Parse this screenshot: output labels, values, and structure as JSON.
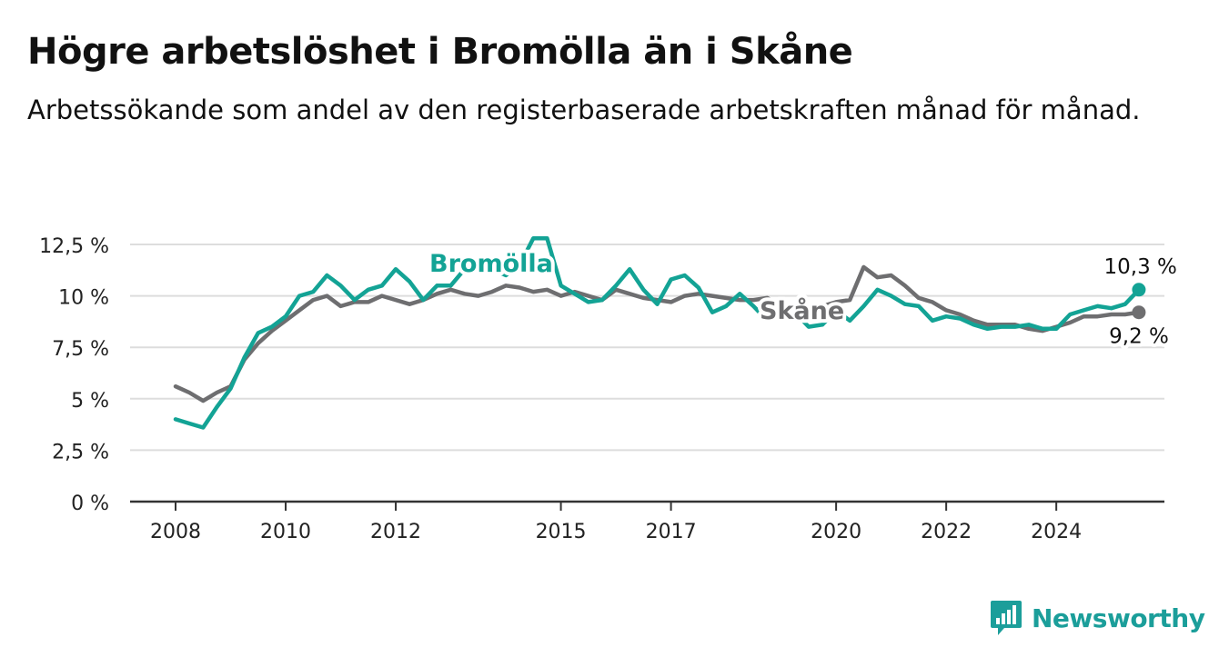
{
  "title": "Högre arbetslöshet i Bromölla än i Skåne",
  "subtitle": "Arbetssökande som andel av den registerbaserade arbetskraften månad för månad.",
  "brand": {
    "name": "Newsworthy",
    "icon": "bar-chart-logo-icon"
  },
  "colors": {
    "bromolla": "#13a395",
    "skane": "#6e6e70",
    "grid": "#dddddd",
    "axis": "#333333"
  },
  "chart_data": {
    "type": "line",
    "title": "Högre arbetslöshet i Bromölla än i Skåne",
    "ylim": [
      0,
      12.5
    ],
    "yticks": [
      0,
      2.5,
      5,
      7.5,
      10,
      12.5
    ],
    "ytick_labels": [
      "0 %",
      "2,5 %",
      "5 %",
      "7,5 %",
      "10 %",
      "12,5 %"
    ],
    "xlim": [
      "2008-01",
      "2025-09"
    ],
    "xticks": [
      "2008-01",
      "2010-01",
      "2012-01",
      "2015-01",
      "2017-01",
      "2020-01",
      "2022-01",
      "2024-01"
    ],
    "xtick_labels": [
      "2008",
      "2010",
      "2012",
      "2015",
      "2017",
      "2020",
      "2022",
      "2024"
    ],
    "grid": true,
    "legend": "inline labels",
    "end_labels": {
      "Bromölla": "10,3 %",
      "Skåne": "9,2 %"
    },
    "series": [
      {
        "name": "Bromölla",
        "points": [
          [
            "2008-01",
            4.0
          ],
          [
            "2008-04",
            3.8
          ],
          [
            "2008-07",
            3.6
          ],
          [
            "2008-10",
            4.6
          ],
          [
            "2009-01",
            5.5
          ],
          [
            "2009-04",
            7.0
          ],
          [
            "2009-07",
            8.2
          ],
          [
            "2009-10",
            8.5
          ],
          [
            "2010-01",
            9.0
          ],
          [
            "2010-04",
            10.0
          ],
          [
            "2010-07",
            10.2
          ],
          [
            "2010-10",
            11.0
          ],
          [
            "2011-01",
            10.5
          ],
          [
            "2011-04",
            9.8
          ],
          [
            "2011-07",
            10.3
          ],
          [
            "2011-10",
            10.5
          ],
          [
            "2012-01",
            11.3
          ],
          [
            "2012-04",
            10.7
          ],
          [
            "2012-07",
            9.8
          ],
          [
            "2012-10",
            10.5
          ],
          [
            "2013-01",
            10.5
          ],
          [
            "2013-04",
            11.3
          ],
          [
            "2013-07",
            11.7
          ],
          [
            "2013-10",
            11.3
          ],
          [
            "2014-01",
            11.0
          ],
          [
            "2014-04",
            11.5
          ],
          [
            "2014-07",
            12.8
          ],
          [
            "2014-10",
            12.8
          ],
          [
            "2015-01",
            10.5
          ],
          [
            "2015-04",
            10.1
          ],
          [
            "2015-07",
            9.7
          ],
          [
            "2015-10",
            9.8
          ],
          [
            "2016-01",
            10.5
          ],
          [
            "2016-04",
            11.3
          ],
          [
            "2016-07",
            10.3
          ],
          [
            "2016-10",
            9.6
          ],
          [
            "2017-01",
            10.8
          ],
          [
            "2017-04",
            11.0
          ],
          [
            "2017-07",
            10.4
          ],
          [
            "2017-10",
            9.2
          ],
          [
            "2018-01",
            9.5
          ],
          [
            "2018-04",
            10.1
          ],
          [
            "2018-07",
            9.5
          ],
          [
            "2018-10",
            8.8
          ],
          [
            "2019-01",
            9.1
          ],
          [
            "2019-04",
            9.2
          ],
          [
            "2019-07",
            8.5
          ],
          [
            "2019-10",
            8.6
          ],
          [
            "2020-01",
            9.3
          ],
          [
            "2020-04",
            8.8
          ],
          [
            "2020-07",
            9.5
          ],
          [
            "2020-10",
            10.3
          ],
          [
            "2021-01",
            10.0
          ],
          [
            "2021-04",
            9.6
          ],
          [
            "2021-07",
            9.5
          ],
          [
            "2021-10",
            8.8
          ],
          [
            "2022-01",
            9.0
          ],
          [
            "2022-04",
            8.9
          ],
          [
            "2022-07",
            8.6
          ],
          [
            "2022-10",
            8.4
          ],
          [
            "2023-01",
            8.5
          ],
          [
            "2023-04",
            8.5
          ],
          [
            "2023-07",
            8.6
          ],
          [
            "2023-10",
            8.4
          ],
          [
            "2024-01",
            8.4
          ],
          [
            "2024-04",
            9.1
          ],
          [
            "2024-07",
            9.3
          ],
          [
            "2024-10",
            9.5
          ],
          [
            "2025-01",
            9.4
          ],
          [
            "2025-04",
            9.6
          ],
          [
            "2025-07",
            10.3
          ]
        ]
      },
      {
        "name": "Skåne",
        "points": [
          [
            "2008-01",
            5.6
          ],
          [
            "2008-04",
            5.3
          ],
          [
            "2008-07",
            4.9
          ],
          [
            "2008-10",
            5.3
          ],
          [
            "2009-01",
            5.6
          ],
          [
            "2009-04",
            6.9
          ],
          [
            "2009-07",
            7.7
          ],
          [
            "2009-10",
            8.3
          ],
          [
            "2010-01",
            8.8
          ],
          [
            "2010-04",
            9.3
          ],
          [
            "2010-07",
            9.8
          ],
          [
            "2010-10",
            10.0
          ],
          [
            "2011-01",
            9.5
          ],
          [
            "2011-04",
            9.7
          ],
          [
            "2011-07",
            9.7
          ],
          [
            "2011-10",
            10.0
          ],
          [
            "2012-01",
            9.8
          ],
          [
            "2012-04",
            9.6
          ],
          [
            "2012-07",
            9.8
          ],
          [
            "2012-10",
            10.1
          ],
          [
            "2013-01",
            10.3
          ],
          [
            "2013-04",
            10.1
          ],
          [
            "2013-07",
            10.0
          ],
          [
            "2013-10",
            10.2
          ],
          [
            "2014-01",
            10.5
          ],
          [
            "2014-04",
            10.4
          ],
          [
            "2014-07",
            10.2
          ],
          [
            "2014-10",
            10.3
          ],
          [
            "2015-01",
            10.0
          ],
          [
            "2015-04",
            10.2
          ],
          [
            "2015-07",
            10.0
          ],
          [
            "2015-10",
            9.8
          ],
          [
            "2016-01",
            10.3
          ],
          [
            "2016-04",
            10.1
          ],
          [
            "2016-07",
            9.9
          ],
          [
            "2016-10",
            9.8
          ],
          [
            "2017-01",
            9.7
          ],
          [
            "2017-04",
            10.0
          ],
          [
            "2017-07",
            10.1
          ],
          [
            "2017-10",
            10.0
          ],
          [
            "2018-01",
            9.9
          ],
          [
            "2018-04",
            9.8
          ],
          [
            "2018-07",
            9.8
          ],
          [
            "2018-10",
            9.9
          ],
          [
            "2019-01",
            9.5
          ],
          [
            "2019-04",
            9.4
          ],
          [
            "2019-07",
            9.3
          ],
          [
            "2019-10",
            9.5
          ],
          [
            "2020-01",
            9.7
          ],
          [
            "2020-04",
            9.8
          ],
          [
            "2020-07",
            11.4
          ],
          [
            "2020-10",
            10.9
          ],
          [
            "2021-01",
            11.0
          ],
          [
            "2021-04",
            10.5
          ],
          [
            "2021-07",
            9.9
          ],
          [
            "2021-10",
            9.7
          ],
          [
            "2022-01",
            9.3
          ],
          [
            "2022-04",
            9.1
          ],
          [
            "2022-07",
            8.8
          ],
          [
            "2022-10",
            8.6
          ],
          [
            "2023-01",
            8.6
          ],
          [
            "2023-04",
            8.6
          ],
          [
            "2023-07",
            8.4
          ],
          [
            "2023-10",
            8.3
          ],
          [
            "2024-01",
            8.5
          ],
          [
            "2024-04",
            8.7
          ],
          [
            "2024-07",
            9.0
          ],
          [
            "2024-10",
            9.0
          ],
          [
            "2025-01",
            9.1
          ],
          [
            "2025-04",
            9.1
          ],
          [
            "2025-07",
            9.2
          ]
        ]
      }
    ]
  }
}
